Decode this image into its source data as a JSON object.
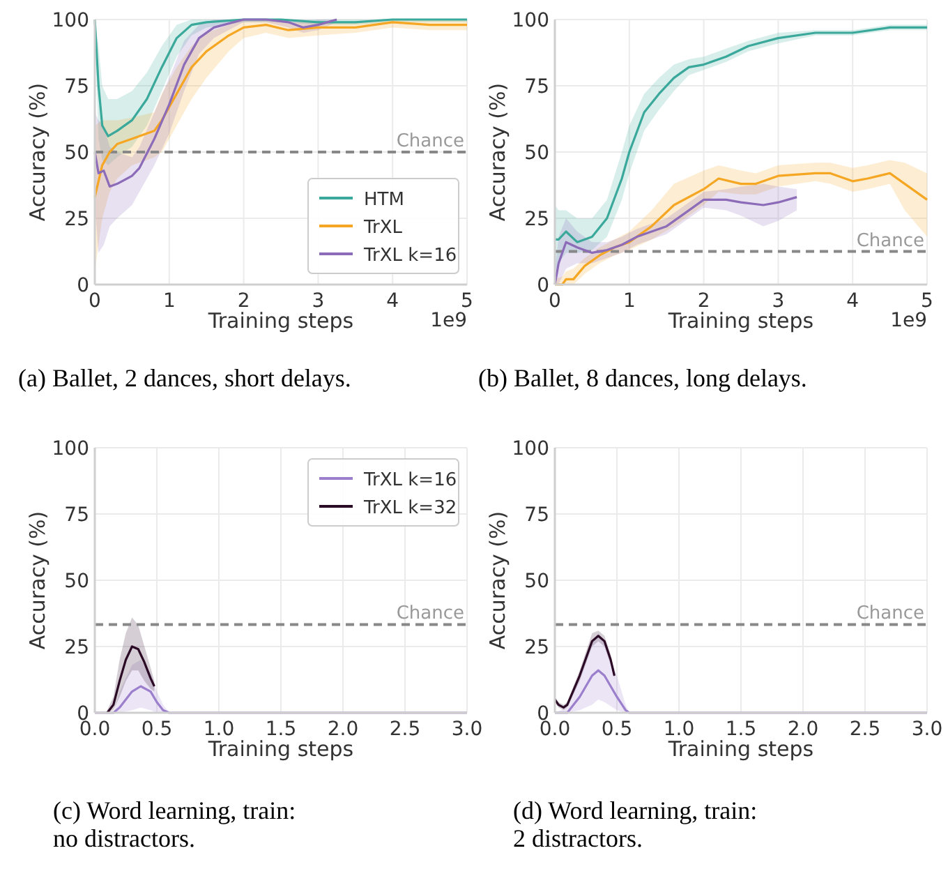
{
  "chart_data": [
    {
      "type": "line",
      "xlabel": "Training steps",
      "ylabel": "Accuracy (%)",
      "xlim": [
        0,
        5
      ],
      "xticks": [
        0,
        1,
        2,
        3,
        4,
        5
      ],
      "ylim": [
        0,
        100
      ],
      "yticks": [
        0,
        25,
        50,
        75,
        100
      ],
      "grid": true,
      "legend": "bottom right",
      "annotations": [
        "1e9",
        "(a) Ballet, 2 dances, short delays."
      ],
      "ref_lines": [
        {
          "axis": "y",
          "value": 50,
          "label": "Chance",
          "color": "#888888",
          "line_style": "dashed"
        }
      ],
      "series": [
        {
          "name": "HTM",
          "color": "#3aa89a",
          "x": [
            0,
            0.05,
            0.1,
            0.18,
            0.3,
            0.5,
            0.7,
            0.9,
            1.1,
            1.3,
            1.5,
            2,
            2.5,
            3,
            3.5,
            4,
            5
          ],
          "values": [
            100,
            75,
            60,
            56,
            58,
            62,
            70,
            82,
            93,
            98,
            99,
            100,
            100,
            99,
            99,
            100,
            100
          ],
          "lower": [
            95,
            55,
            47,
            45,
            48,
            52,
            60,
            73,
            86,
            94,
            97,
            99,
            99,
            98,
            98,
            99,
            99
          ],
          "upper": [
            100,
            90,
            75,
            70,
            70,
            73,
            80,
            90,
            98,
            100,
            100,
            100,
            100,
            100,
            100,
            100,
            100
          ]
        },
        {
          "name": "TrXL",
          "color": "#f5a623",
          "x": [
            0,
            0.1,
            0.2,
            0.3,
            0.5,
            0.8,
            0.9,
            1.1,
            1.3,
            1.5,
            1.8,
            2,
            2.3,
            2.6,
            3,
            3.5,
            4,
            4.5,
            5
          ],
          "values": [
            33,
            45,
            50,
            53,
            55,
            58,
            62,
            72,
            82,
            88,
            94,
            97,
            98,
            96,
            97,
            97,
            99,
            98,
            98
          ],
          "lower": [
            5,
            25,
            35,
            40,
            45,
            48,
            50,
            60,
            70,
            78,
            88,
            93,
            95,
            93,
            94,
            95,
            97,
            96,
            96
          ],
          "upper": [
            60,
            62,
            62,
            62,
            63,
            65,
            72,
            82,
            90,
            95,
            98,
            100,
            100,
            99,
            99,
            99,
            100,
            100,
            100
          ]
        },
        {
          "name": "TrXL k=16",
          "color": "#8c6bb8",
          "x": [
            0,
            0.05,
            0.12,
            0.2,
            0.3,
            0.5,
            0.6,
            0.8,
            1,
            1.2,
            1.4,
            1.6,
            2,
            2.3,
            2.6,
            2.8,
            3,
            3.25
          ],
          "values": [
            50,
            42,
            43,
            37,
            38,
            41,
            44,
            55,
            68,
            83,
            93,
            97,
            100,
            100,
            99,
            97,
            98,
            100
          ],
          "lower": [
            30,
            12,
            15,
            22,
            25,
            30,
            35,
            45,
            57,
            73,
            87,
            93,
            99,
            99,
            97,
            95,
            96,
            99
          ],
          "upper": [
            65,
            62,
            60,
            52,
            50,
            48,
            52,
            65,
            78,
            92,
            98,
            100,
            100,
            100,
            100,
            99,
            100,
            100
          ]
        }
      ]
    },
    {
      "type": "line",
      "xlabel": "Training steps",
      "ylabel": "Accuracy (%)",
      "xlim": [
        0,
        5
      ],
      "xticks": [
        0,
        1,
        2,
        3,
        4,
        5
      ],
      "ylim": [
        0,
        100
      ],
      "yticks": [
        0,
        25,
        50,
        75,
        100
      ],
      "grid": true,
      "annotations": [
        "1e9",
        "(b) Ballet, 8 dances, long delays."
      ],
      "ref_lines": [
        {
          "axis": "y",
          "value": 12.5,
          "label": "Chance",
          "color": "#888888",
          "line_style": "dashed"
        }
      ],
      "series": [
        {
          "name": null,
          "color": "#3aa89a",
          "x": [
            0,
            0.05,
            0.15,
            0.3,
            0.5,
            0.7,
            0.9,
            1,
            1.2,
            1.4,
            1.6,
            1.8,
            2,
            2.3,
            2.6,
            3,
            3.5,
            4,
            4.5,
            5
          ],
          "values": [
            17,
            17,
            20,
            16,
            18,
            25,
            40,
            50,
            65,
            72,
            78,
            82,
            83,
            86,
            90,
            93,
            95,
            95,
            97,
            97
          ],
          "lower": [
            5,
            8,
            12,
            12,
            13,
            18,
            32,
            42,
            58,
            66,
            73,
            79,
            81,
            84,
            88,
            91,
            94,
            94,
            96,
            96
          ],
          "upper": [
            30,
            28,
            28,
            25,
            25,
            32,
            50,
            60,
            72,
            78,
            83,
            85,
            86,
            89,
            92,
            95,
            96,
            96,
            98,
            98
          ]
        },
        {
          "name": null,
          "color": "#f5a623",
          "x": [
            0,
            0.1,
            0.15,
            0.25,
            0.4,
            0.6,
            0.8,
            1,
            1.3,
            1.6,
            2,
            2.2,
            2.5,
            2.7,
            3,
            3.5,
            3.7,
            4,
            4.2,
            4.5,
            4.7,
            5
          ],
          "values": [
            0,
            0,
            2,
            2,
            7,
            11,
            14,
            16,
            22,
            30,
            36,
            40,
            38,
            38,
            41,
            42,
            42,
            39,
            40,
            42,
            38,
            32
          ],
          "lower": [
            0,
            0,
            0,
            0,
            4,
            8,
            11,
            13,
            17,
            22,
            30,
            35,
            34,
            34,
            37,
            39,
            38,
            35,
            36,
            38,
            28,
            18
          ],
          "upper": [
            2,
            3,
            5,
            6,
            10,
            14,
            17,
            20,
            28,
            38,
            43,
            45,
            43,
            42,
            45,
            46,
            46,
            44,
            45,
            47,
            46,
            42
          ]
        },
        {
          "name": null,
          "color": "#8c6bb8",
          "x": [
            0,
            0.05,
            0.15,
            0.3,
            0.5,
            0.7,
            0.9,
            1.1,
            1.5,
            1.8,
            2,
            2.3,
            2.5,
            2.8,
            3,
            3.25
          ],
          "values": [
            0,
            8,
            16,
            14,
            12,
            13,
            15,
            18,
            22,
            28,
            32,
            32,
            31,
            30,
            31,
            33
          ],
          "lower": [
            0,
            0,
            6,
            8,
            8,
            10,
            12,
            15,
            19,
            25,
            29,
            28,
            26,
            22,
            24,
            28
          ],
          "upper": [
            5,
            18,
            25,
            20,
            16,
            16,
            18,
            21,
            25,
            31,
            35,
            36,
            37,
            38,
            37,
            36
          ]
        }
      ]
    },
    {
      "type": "line",
      "xlabel": "Training steps",
      "ylabel": "Accuracy (%)",
      "xlim": [
        0,
        3
      ],
      "xticks": [
        {
          "value": 0,
          "label": "0.0"
        },
        {
          "value": 0.5,
          "label": "0.5"
        },
        {
          "value": 1,
          "label": "1.0"
        },
        {
          "value": 1.5,
          "label": "1.5"
        },
        {
          "value": 2,
          "label": "2.0"
        },
        {
          "value": 2.5,
          "label": "2.5"
        },
        {
          "value": 3,
          "label": "3.0"
        }
      ],
      "ylim": [
        0,
        100
      ],
      "yticks": [
        0,
        25,
        50,
        75,
        100
      ],
      "grid": true,
      "legend": "top right",
      "annotations": [
        "(c) Word learning, train: no distractors."
      ],
      "ref_lines": [
        {
          "axis": "y",
          "value": 33.3,
          "label": "Chance",
          "color": "#888888",
          "line_style": "dashed"
        }
      ],
      "series": [
        {
          "name": "TrXL k=16",
          "color": "#9c7fcc",
          "x": [
            0,
            0.15,
            0.2,
            0.3,
            0.37,
            0.45,
            0.5,
            0.55,
            0.6,
            1,
            3
          ],
          "values": [
            0,
            0,
            2,
            8,
            10,
            8,
            4,
            1,
            0,
            0,
            0
          ],
          "lower": [
            0,
            0,
            0,
            1,
            2,
            1,
            0,
            0,
            0,
            0,
            0
          ],
          "upper": [
            0,
            0,
            8,
            18,
            20,
            15,
            8,
            3,
            0,
            0,
            0
          ]
        },
        {
          "name": "TrXL k=32",
          "color": "#2b0a26",
          "x": [
            0.1,
            0.15,
            0.2,
            0.25,
            0.3,
            0.35,
            0.4,
            0.45,
            0.48
          ],
          "values": [
            0,
            3,
            12,
            20,
            25,
            24,
            19,
            13,
            10
          ],
          "lower": [
            0,
            1,
            6,
            12,
            16,
            16,
            12,
            9,
            8
          ],
          "upper": [
            1,
            6,
            20,
            30,
            36,
            33,
            25,
            17,
            12
          ]
        }
      ]
    },
    {
      "type": "line",
      "xlabel": "Training steps",
      "ylabel": "Accuracy (%)",
      "xlim": [
        0,
        3
      ],
      "xticks": [
        {
          "value": 0,
          "label": "0.0"
        },
        {
          "value": 0.5,
          "label": "0.5"
        },
        {
          "value": 1,
          "label": "1.0"
        },
        {
          "value": 1.5,
          "label": "1.5"
        },
        {
          "value": 2,
          "label": "2.0"
        },
        {
          "value": 2.5,
          "label": "2.5"
        },
        {
          "value": 3,
          "label": "3.0"
        }
      ],
      "ylim": [
        0,
        100
      ],
      "yticks": [
        0,
        25,
        50,
        75,
        100
      ],
      "grid": true,
      "annotations": [
        "(d) Word learning, train: 2 distractors."
      ],
      "ref_lines": [
        {
          "axis": "y",
          "value": 33.3,
          "label": "Chance",
          "color": "#888888",
          "line_style": "dashed"
        }
      ],
      "series": [
        {
          "name": null,
          "color": "#9c7fcc",
          "x": [
            0,
            0.1,
            0.2,
            0.3,
            0.35,
            0.4,
            0.5,
            0.57,
            0.6,
            3
          ],
          "values": [
            0,
            0,
            6,
            14,
            16,
            14,
            6,
            1,
            0,
            0
          ],
          "lower": [
            0,
            0,
            1,
            3,
            5,
            4,
            1,
            0,
            0,
            0
          ],
          "upper": [
            0,
            2,
            15,
            26,
            30,
            27,
            14,
            3,
            0,
            0
          ]
        },
        {
          "name": null,
          "color": "#2b0a26",
          "x": [
            0,
            0.03,
            0.07,
            0.1,
            0.2,
            0.3,
            0.35,
            0.4,
            0.45,
            0.48
          ],
          "values": [
            5,
            3,
            2,
            3,
            14,
            27,
            29,
            27,
            20,
            14
          ],
          "lower": [
            4,
            2,
            1,
            2,
            12,
            25,
            27,
            25,
            18,
            13
          ],
          "upper": [
            6,
            4,
            3,
            4,
            16,
            30,
            31,
            29,
            22,
            15
          ]
        }
      ]
    }
  ]
}
